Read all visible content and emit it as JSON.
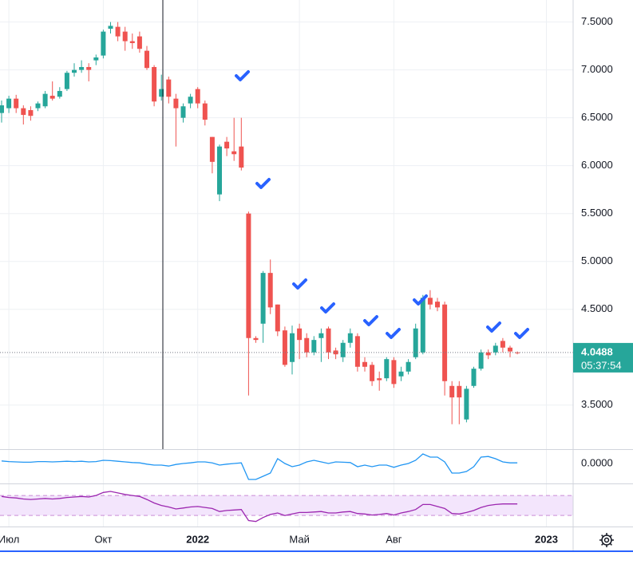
{
  "chart_data": [
    {
      "type": "candlestick",
      "categories": [
        null,
        "Июл",
        null,
        null,
        null,
        null,
        null,
        null,
        null,
        null,
        null,
        null,
        null,
        null,
        "Окт",
        null,
        null,
        null,
        null,
        null,
        null,
        null,
        null,
        null,
        null,
        null,
        null,
        "2022",
        null,
        null,
        null,
        null,
        null,
        null,
        null,
        null,
        null,
        null,
        null,
        null,
        null,
        "Май",
        null,
        null,
        null,
        null,
        null,
        null,
        null,
        null,
        null,
        null,
        null,
        null,
        "Авг",
        null,
        null,
        null,
        null,
        null,
        null,
        null,
        null,
        null,
        null,
        null,
        null,
        null,
        null,
        null,
        null,
        null,
        null,
        null,
        null,
        "2023",
        null
      ],
      "open": [
        6.55,
        6.6,
        6.7,
        6.6,
        6.58,
        6.6,
        6.62,
        6.73,
        6.72,
        6.8,
        6.97,
        7.0,
        7.03,
        7.1,
        7.15,
        7.43,
        7.45,
        7.4,
        7.3,
        7.35,
        7.2,
        7.03,
        6.72,
        6.9,
        6.7,
        6.5,
        6.65,
        6.8,
        6.65,
        6.3,
        5.7,
        6.25,
        6.15,
        6.2,
        5.5,
        4.2,
        4.35,
        4.88,
        4.55,
        4.28,
        3.95,
        4.3,
        4.2,
        4.05,
        4.2,
        4.3,
        4.07,
        4.0,
        4.15,
        4.22,
        3.95,
        3.92,
        3.78,
        3.78,
        3.97,
        3.8,
        3.85,
        4.0,
        4.05,
        4.62,
        4.58,
        4.55,
        3.7,
        3.7,
        3.35,
        3.7,
        3.88,
        4.05,
        4.05,
        4.17,
        4.1,
        4.05,
        null,
        null,
        null,
        null,
        null
      ],
      "high": [
        6.68,
        6.73,
        6.74,
        6.63,
        6.62,
        6.67,
        6.78,
        6.88,
        6.82,
        6.99,
        7.07,
        7.1,
        7.07,
        7.16,
        7.42,
        7.5,
        7.5,
        7.45,
        7.38,
        7.4,
        7.25,
        7.05,
        6.95,
        6.93,
        6.75,
        6.65,
        6.75,
        6.82,
        6.68,
        6.3,
        6.22,
        6.3,
        6.5,
        6.5,
        5.52,
        4.22,
        4.9,
        5.02,
        4.55,
        4.32,
        4.33,
        4.35,
        4.25,
        4.22,
        4.3,
        4.32,
        4.1,
        4.18,
        4.3,
        4.25,
        4.0,
        3.95,
        3.85,
        4.0,
        4.0,
        3.9,
        3.98,
        4.35,
        4.65,
        4.7,
        4.62,
        4.58,
        3.75,
        3.75,
        3.7,
        3.9,
        4.08,
        4.08,
        4.15,
        4.2,
        4.12,
        4.06,
        null,
        null,
        null,
        null,
        null
      ],
      "low": [
        6.45,
        6.55,
        6.55,
        6.43,
        6.47,
        6.57,
        6.6,
        6.68,
        6.7,
        6.78,
        6.93,
        6.97,
        6.88,
        7.05,
        7.12,
        7.38,
        7.3,
        7.2,
        7.22,
        7.18,
        7.0,
        6.62,
        6.68,
        6.65,
        6.2,
        6.45,
        6.6,
        6.6,
        6.42,
        5.92,
        5.63,
        6.1,
        6.05,
        5.95,
        3.6,
        4.15,
        4.15,
        4.45,
        4.22,
        3.9,
        3.82,
        3.98,
        4.0,
        4.02,
        3.95,
        3.98,
        3.98,
        3.95,
        4.1,
        3.85,
        3.85,
        3.7,
        3.65,
        3.75,
        3.68,
        3.75,
        3.82,
        3.98,
        4.03,
        4.5,
        4.48,
        3.6,
        3.3,
        3.3,
        3.32,
        3.68,
        3.86,
        3.98,
        4.02,
        4.05,
        4.0,
        4.03,
        null,
        null,
        null,
        null,
        null
      ],
      "close": [
        6.63,
        6.7,
        6.6,
        6.53,
        6.52,
        6.65,
        6.75,
        6.7,
        6.78,
        6.97,
        7.0,
        7.03,
        7.0,
        7.13,
        7.4,
        7.46,
        7.35,
        7.3,
        7.28,
        7.22,
        7.02,
        6.67,
        6.8,
        6.72,
        6.6,
        6.62,
        6.72,
        6.65,
        6.48,
        6.04,
        6.2,
        6.18,
        6.12,
        5.98,
        4.2,
        4.18,
        4.88,
        4.52,
        4.27,
        3.92,
        4.25,
        4.18,
        4.05,
        4.18,
        4.25,
        4.05,
        4.03,
        4.15,
        4.25,
        3.9,
        3.9,
        3.75,
        3.76,
        3.98,
        3.72,
        3.85,
        3.95,
        4.3,
        4.62,
        4.55,
        4.52,
        3.75,
        3.58,
        3.58,
        3.67,
        3.88,
        4.05,
        4.02,
        4.12,
        4.1,
        4.06,
        4.0488,
        null,
        null,
        null,
        null,
        null
      ],
      "up_color": "#26a69a",
      "down_color": "#ef5350",
      "ylim": [
        3.04,
        7.73
      ],
      "yticks": [
        {
          "value": 7.5,
          "label": "7.5000"
        },
        {
          "value": 7.0,
          "label": "7.0000"
        },
        {
          "value": 6.5,
          "label": "6.5000"
        },
        {
          "value": 6.0,
          "label": "6.0000"
        },
        {
          "value": 5.5,
          "label": "5.5000"
        },
        {
          "value": 5.0,
          "label": "5.0000"
        },
        {
          "value": 4.5,
          "label": "4.5000"
        },
        {
          "value": 4.0,
          "label": "4.0000"
        },
        {
          "value": 3.5,
          "label": "3.5000"
        }
      ],
      "grid": true,
      "last_price": 4.0488,
      "countdown": "05:37:54"
    },
    {
      "type": "line",
      "color": "#2196f3",
      "values": [
        0.08,
        0.06,
        0.05,
        0.04,
        0.04,
        0.06,
        0.06,
        0.05,
        0.06,
        0.07,
        0.06,
        0.07,
        0.05,
        0.06,
        0.1,
        0.09,
        0.07,
        0.05,
        0.03,
        0.02,
        -0.02,
        -0.05,
        -0.05,
        -0.08,
        -0.03,
        0.0,
        0.02,
        0.05,
        0.05,
        0.02,
        -0.05,
        -0.02,
        0.0,
        0.02,
        -0.5,
        -0.5,
        -0.4,
        -0.3,
        0.15,
        0.0,
        -0.1,
        -0.05,
        0.05,
        0.1,
        0.05,
        0.0,
        0.05,
        0.04,
        0.03,
        -0.1,
        -0.05,
        -0.1,
        -0.05,
        -0.05,
        -0.12,
        -0.05,
        0.0,
        0.1,
        0.3,
        0.2,
        0.2,
        0.05,
        -0.3,
        -0.3,
        -0.25,
        -0.1,
        0.2,
        0.22,
        0.15,
        0.05,
        0.02,
        0.02,
        null,
        null,
        null,
        null,
        null
      ],
      "ylim": [
        -0.6,
        0.4
      ],
      "yticks": [
        {
          "value": 0,
          "label": "0.0000"
        }
      ]
    },
    {
      "type": "line",
      "color": "#9c27b0",
      "values": [
        68,
        66,
        65,
        63,
        62,
        63,
        64,
        63,
        64,
        66,
        67,
        68,
        67,
        70,
        76,
        78,
        75,
        72,
        70,
        68,
        62,
        55,
        50,
        47,
        43,
        45,
        47,
        48,
        46,
        44,
        38,
        40,
        41,
        42,
        20,
        18,
        26,
        32,
        35,
        30,
        33,
        36,
        36,
        37,
        38,
        35,
        35,
        37,
        38,
        34,
        33,
        31,
        32,
        34,
        31,
        35,
        38,
        42,
        52,
        52,
        48,
        44,
        34,
        33,
        36,
        40,
        46,
        50,
        52,
        53,
        53,
        53,
        null,
        null,
        null,
        null,
        null
      ],
      "ylim": [
        8,
        94
      ],
      "band": [
        30,
        70
      ],
      "band_color": "#f3e5fc"
    }
  ]
}
